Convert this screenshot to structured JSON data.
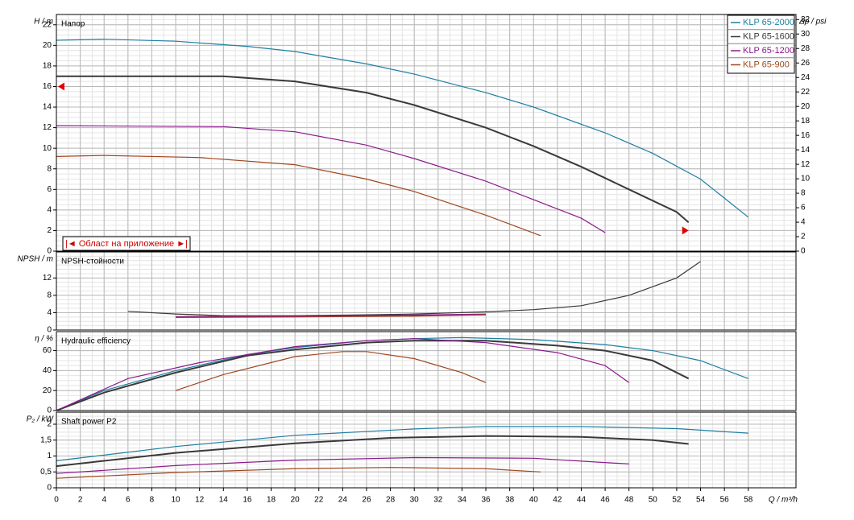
{
  "chart_data": [
    {
      "type": "line",
      "label": "Напор",
      "ylabel": "H / m",
      "y2label": "Δp / psi",
      "ylim": [
        0,
        23
      ],
      "yticks": [
        0,
        2,
        4,
        6,
        8,
        10,
        12,
        14,
        16,
        18,
        20,
        22
      ],
      "y2lim": [
        0,
        32.7
      ],
      "y2ticks": [
        0,
        2,
        4,
        6,
        8,
        10,
        12,
        14,
        16,
        18,
        20,
        22,
        24,
        26,
        28,
        30,
        32
      ],
      "legend": "upper right",
      "annotation": "|◄ Област на приложение ►|",
      "series": [
        {
          "name": "KLP 65-2000",
          "color": "#1f7fa3",
          "x": [
            0,
            4,
            10,
            16,
            20,
            26,
            30,
            36,
            40,
            46,
            50,
            54,
            58
          ],
          "values": [
            20.5,
            20.6,
            20.4,
            19.9,
            19.4,
            18.2,
            17.2,
            15.4,
            14.0,
            11.5,
            9.5,
            7.0,
            3.3
          ]
        },
        {
          "name": "KLP 65-1600",
          "color": "#3a3a3a",
          "x": [
            0,
            14,
            20,
            26,
            30,
            36,
            40,
            44,
            48,
            52,
            53
          ],
          "values": [
            17,
            17,
            16.5,
            15.4,
            14.2,
            12.0,
            10.2,
            8.2,
            6.0,
            3.8,
            2.8
          ]
        },
        {
          "name": "KLP 65-1200",
          "color": "#8c1a8c",
          "x": [
            0,
            14,
            20,
            26,
            30,
            36,
            40,
            44,
            46
          ],
          "values": [
            12.2,
            12.1,
            11.6,
            10.3,
            9.0,
            6.8,
            5.0,
            3.2,
            1.8
          ]
        },
        {
          "name": "KLP 65-900",
          "color": "#a0461e",
          "x": [
            0,
            4,
            12,
            20,
            26,
            30,
            36,
            40.6
          ],
          "values": [
            9.2,
            9.3,
            9.1,
            8.4,
            7.0,
            5.8,
            3.5,
            1.5
          ]
        }
      ]
    },
    {
      "type": "line",
      "label": "NPSH-стойности",
      "ylabel": "NPSH / m",
      "ylim": [
        0,
        18
      ],
      "yticks": [
        0,
        4,
        8,
        12
      ],
      "series": [
        {
          "color": "#3a3a3a",
          "x": [
            6,
            10,
            14,
            20,
            26,
            30,
            36,
            40,
            44,
            48,
            52,
            54
          ],
          "values": [
            4.3,
            3.7,
            3.3,
            3.3,
            3.5,
            3.7,
            4.2,
            4.7,
            5.6,
            8.0,
            12,
            15.8
          ]
        },
        {
          "color": "#8c1a8c",
          "x": [
            10,
            20,
            30,
            36
          ],
          "values": [
            3.0,
            3.2,
            3.4,
            3.6
          ]
        },
        {
          "color": "#a0461e",
          "x": [
            10,
            20,
            30,
            36
          ],
          "values": [
            2.9,
            3.0,
            3.2,
            3.5
          ]
        }
      ]
    },
    {
      "type": "line",
      "label": "Hydraulic efficiency",
      "ylabel": "η / %",
      "ylim": [
        0,
        79
      ],
      "yticks": [
        0,
        20,
        40,
        60
      ],
      "series": [
        {
          "color": "#1f7fa3",
          "x": [
            0,
            4,
            10,
            16,
            20,
            26,
            30,
            34,
            40,
            46,
            50,
            54,
            58
          ],
          "values": [
            0,
            20,
            40,
            56,
            63,
            70,
            72,
            73,
            71,
            66,
            60,
            50,
            32
          ]
        },
        {
          "color": "#3a3a3a",
          "x": [
            0,
            4,
            10,
            16,
            20,
            26,
            30,
            36,
            42,
            46,
            50,
            53
          ],
          "values": [
            0,
            18,
            38,
            55,
            61,
            68,
            70,
            70,
            65,
            60,
            50,
            32
          ]
        },
        {
          "color": "#8c1a8c",
          "x": [
            0,
            6,
            12,
            20,
            26,
            30,
            36,
            42,
            46,
            48
          ],
          "values": [
            0,
            32,
            48,
            64,
            70,
            72,
            68,
            58,
            45,
            28
          ]
        },
        {
          "color": "#a0461e",
          "x": [
            10,
            14,
            20,
            24,
            26,
            30,
            34,
            36
          ],
          "values": [
            20,
            36,
            54,
            59,
            59,
            52,
            38,
            28
          ]
        }
      ]
    },
    {
      "type": "line",
      "label": "Shaft power P2",
      "ylabel": "P₂ / kW",
      "xlabel": "Q / m³/h",
      "ylim": [
        0,
        2.38
      ],
      "yticks": [
        0,
        {
          "value": 0.5,
          "label": "0,5"
        },
        1,
        {
          "value": 1.5,
          "label": "1,5"
        },
        2
      ],
      "xlim": [
        0,
        62
      ],
      "xticks": [
        0,
        2,
        4,
        6,
        8,
        10,
        12,
        14,
        16,
        18,
        20,
        22,
        24,
        26,
        28,
        30,
        32,
        34,
        36,
        38,
        40,
        42,
        44,
        46,
        48,
        50,
        52,
        54,
        56,
        58
      ],
      "series": [
        {
          "color": "#1f7fa3",
          "x": [
            0,
            10,
            20,
            30,
            36,
            44,
            52,
            58
          ],
          "values": [
            0.85,
            1.3,
            1.65,
            1.85,
            1.93,
            1.93,
            1.86,
            1.72
          ]
        },
        {
          "color": "#3a3a3a",
          "x": [
            0,
            10,
            20,
            28,
            36,
            44,
            50,
            53
          ],
          "values": [
            0.68,
            1.1,
            1.4,
            1.57,
            1.63,
            1.6,
            1.5,
            1.38
          ]
        },
        {
          "color": "#8c1a8c",
          "x": [
            0,
            10,
            20,
            30,
            40,
            48
          ],
          "values": [
            0.45,
            0.7,
            0.87,
            0.95,
            0.93,
            0.75
          ]
        },
        {
          "color": "#a0461e",
          "x": [
            0,
            10,
            20,
            28,
            36,
            40.6
          ],
          "values": [
            0.3,
            0.48,
            0.6,
            0.64,
            0.6,
            0.5
          ]
        }
      ]
    }
  ]
}
